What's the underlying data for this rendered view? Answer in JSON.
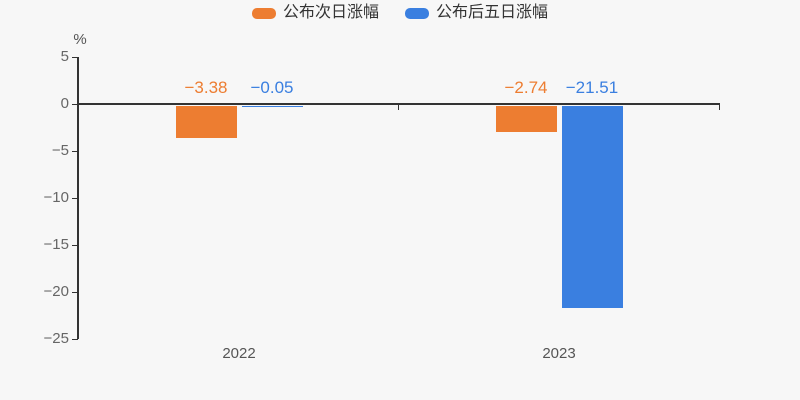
{
  "chart_data": {
    "type": "bar",
    "title": "",
    "ylabel": "%",
    "xlabel": "",
    "categories": [
      "2022",
      "2023"
    ],
    "series": [
      {
        "name": "公布次日涨幅",
        "color": "#ed7d31",
        "values": [
          -3.38,
          -2.74
        ],
        "labels": [
          "−3.38",
          "−2.74"
        ]
      },
      {
        "name": "公布后五日涨幅",
        "color": "#3a7fe0",
        "values": [
          -0.05,
          -21.51
        ],
        "labels": [
          "−0.05",
          "−21.51"
        ]
      }
    ],
    "y_ticks": [
      5,
      0,
      -5,
      -10,
      -15,
      -20,
      -25
    ],
    "y_tick_labels": [
      "5",
      "0",
      "−5",
      "−10",
      "−15",
      "−20",
      "−25"
    ],
    "ylim": [
      -25,
      5
    ],
    "legend_position": "top",
    "grid": false,
    "background_color": "#f7f7f7",
    "axis_color": "#333333",
    "tick_label_color": "#666666",
    "category_label_color": "#555555"
  }
}
